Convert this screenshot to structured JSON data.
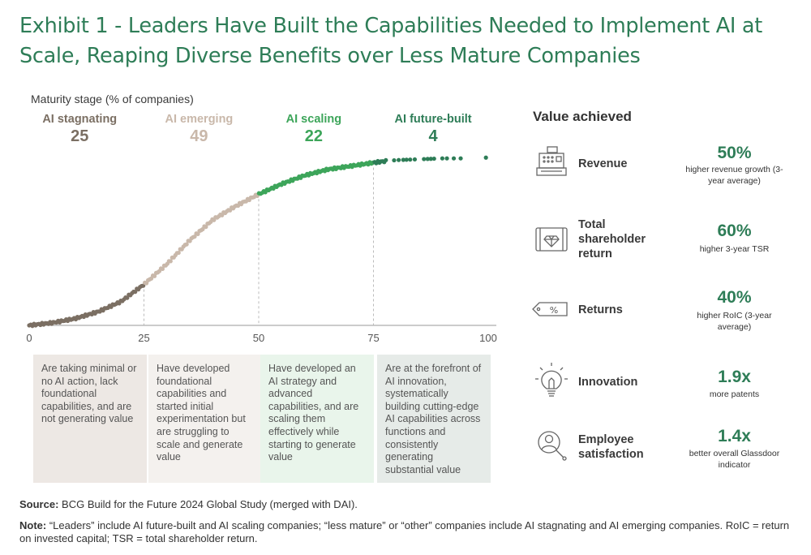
{
  "title": "Exhibit 1 - Leaders Have Built the Capabilities Needed to Implement AI at Scale, Reaping Diverse Benefits over Less Mature Companies",
  "colors": {
    "title": "#2e7d57",
    "stagnating": "#7b6f63",
    "emerging": "#c9b8aa",
    "scaling": "#3da55a",
    "future_built": "#2e7d57"
  },
  "chart_data": {
    "type": "scatter",
    "ylabel": "Maturity stage (% of companies)",
    "xlim": [
      0,
      100
    ],
    "x_ticks": [
      "0",
      "25",
      "50",
      "75",
      "100"
    ],
    "dividers": [
      25,
      50,
      75
    ],
    "stages": [
      {
        "name": "AI stagnating",
        "value": "25",
        "x_center": 11
      },
      {
        "name": "AI emerging",
        "value": "49",
        "x_center": 37
      },
      {
        "name": "AI scaling",
        "value": "22",
        "x_center": 62
      },
      {
        "name": "AI future-built",
        "value": "4",
        "x_center": 88
      }
    ],
    "descriptions": [
      "Are taking minimal or no AI action, lack foundational capabilities, and are not generating value",
      "Have developed foundational capabilities and started initial experimentation but are struggling to scale and generate value",
      "Have developed an AI strategy and advanced capabilities, and are scaling them effectively while starting to generate value",
      "Are at the forefront of AI innovation, systematically building cutting-edge AI capabilities across functions and consistently generating substantial value"
    ],
    "curve": [
      [
        0,
        0.0
      ],
      [
        5,
        1.5
      ],
      [
        10,
        4
      ],
      [
        15,
        8
      ],
      [
        20,
        14
      ],
      [
        25,
        24
      ],
      [
        30,
        36
      ],
      [
        35,
        50
      ],
      [
        40,
        62
      ],
      [
        45,
        70
      ],
      [
        50,
        77
      ],
      [
        55,
        83
      ],
      [
        60,
        88
      ],
      [
        65,
        91.5
      ],
      [
        70,
        93.5
      ],
      [
        75,
        95.5
      ],
      [
        78,
        96.5
      ],
      [
        80,
        97
      ],
      [
        85,
        97.5
      ],
      [
        90,
        98
      ],
      [
        95,
        98
      ],
      [
        100,
        98.5
      ]
    ]
  },
  "value_title": "Value achieved",
  "values": [
    {
      "icon": "cash-register-icon",
      "label": "Revenue",
      "number": "50%",
      "desc": "higher revenue growth (3-year average)"
    },
    {
      "icon": "diamond-case-icon",
      "label": "Total shareholder return",
      "number": "60%",
      "desc": "higher 3-year TSR"
    },
    {
      "icon": "percent-tag-icon",
      "label": "Returns",
      "number": "40%",
      "desc": "higher RoIC (3-year average)"
    },
    {
      "icon": "lightbulb-icon",
      "label": "Innovation",
      "number": "1.9x",
      "desc": "more patents"
    },
    {
      "icon": "employee-icon",
      "label": "Employee satisfaction",
      "number": "1.4x",
      "desc": "better overall Glassdoor indicator"
    }
  ],
  "source": {
    "label": "Source:",
    "text": "BCG Build for the Future 2024 Global Study (merged with DAI)."
  },
  "note": {
    "label": "Note:",
    "text": "“Leaders” include AI future-built and AI scaling companies; “less mature” or “other” companies include AI stagnating and AI emerging companies. RoIC = return on invested capital; TSR = total shareholder return."
  }
}
